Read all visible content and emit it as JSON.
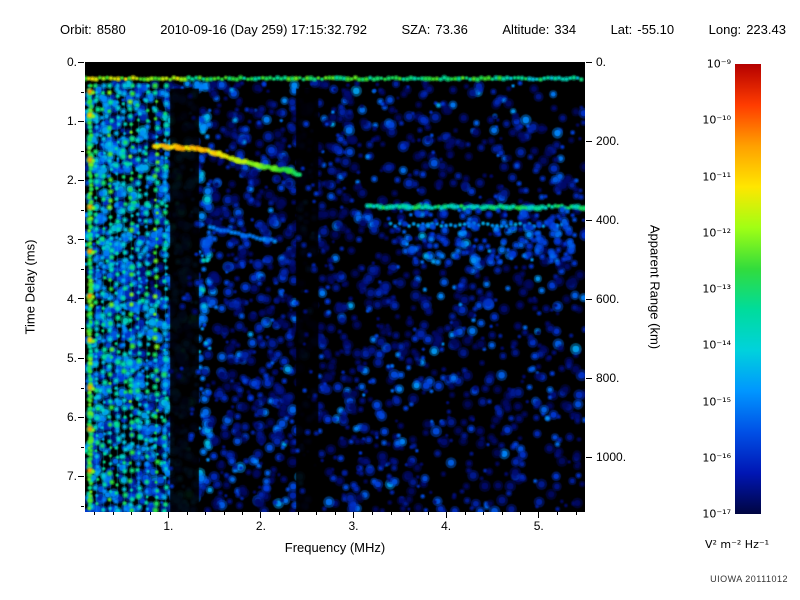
{
  "header": {
    "orbit": {
      "label": "Orbit:",
      "value": "8580"
    },
    "datetime": {
      "value": "2010-09-16 (Day 259) 17:15:32.792"
    },
    "sza": {
      "label": "SZA:",
      "value": "73.36"
    },
    "altitude": {
      "label": "Altitude:",
      "value": "334"
    },
    "lat": {
      "label": "Lat:",
      "value": "-55.10"
    },
    "long": {
      "label": "Long:",
      "value": "223.43"
    }
  },
  "chart_data": {
    "type": "heatmap",
    "xlabel": "Frequency (MHz)",
    "ylabel": "Time Delay (ms)",
    "y2label": "Apparent Range (km)",
    "x_range_mhz": [
      0.1,
      5.5
    ],
    "y_range_ms": [
      0,
      7.6
    ],
    "km_per_ms": 149.9,
    "x_tick_values": [
      1,
      2,
      3,
      4,
      5
    ],
    "x_tick_labels": [
      "1.",
      "2.",
      "3.",
      "4.",
      "5."
    ],
    "y_tick_values": [
      0,
      1,
      2,
      3,
      4,
      5,
      6,
      7
    ],
    "y_tick_labels": [
      "0.",
      "1.",
      "2.",
      "3.",
      "4.",
      "5.",
      "6.",
      "7."
    ],
    "y2_tick_values": [
      0,
      200,
      400,
      600,
      800,
      1000
    ],
    "y2_tick_labels": [
      "0.",
      "200.",
      "400.",
      "600.",
      "800.",
      "1000."
    ],
    "colorbar": {
      "scale": "log",
      "unit": "V² m⁻² Hz⁻¹",
      "tick_labels": [
        "10⁻⁹",
        "10⁻¹⁰",
        "10⁻¹¹",
        "10⁻¹²",
        "10⁻¹³",
        "10⁻¹⁴",
        "10⁻¹⁵",
        "10⁻¹⁶",
        "10⁻¹⁷"
      ],
      "gradient": [
        "#b40000",
        "#ff3c00",
        "#ffa000",
        "#ffe600",
        "#a0ff14",
        "#32dc3c",
        "#00dc9b",
        "#00d2dc",
        "#0096ff",
        "#0050e6",
        "#0016b4",
        "#000541"
      ]
    },
    "features": {
      "first_echo_line_ms": 0.28,
      "plasma_harmonic_lines_mhz": [
        0.155,
        0.225,
        0.3,
        0.375,
        0.45,
        0.525,
        0.6,
        0.68,
        0.77,
        0.87,
        0.97
      ],
      "bright_resonance_mhz": 0.155,
      "bright_spot_delays_ms": [
        0.5,
        0.9,
        1.65,
        2.45,
        3.2,
        3.95,
        4.7,
        5.5,
        6.2,
        6.9
      ],
      "ionosphere_trace_f_mhz_t_ms": [
        [
          0.85,
          1.42
        ],
        [
          1.1,
          1.44
        ],
        [
          1.35,
          1.47
        ],
        [
          1.55,
          1.55
        ],
        [
          1.75,
          1.66
        ],
        [
          1.95,
          1.74
        ],
        [
          2.15,
          1.8
        ],
        [
          2.3,
          1.84
        ],
        [
          2.42,
          1.9
        ]
      ],
      "second_echo_trace": [
        [
          1.45,
          2.8
        ],
        [
          1.8,
          2.92
        ],
        [
          2.15,
          3.02
        ]
      ],
      "oblique_echo_band": {
        "t_ms": 2.45,
        "f_mhz": [
          3.15,
          5.5
        ]
      },
      "oblique_echo_band2": {
        "t_ms": 2.75,
        "f_mhz": [
          3.4,
          5.3
        ]
      },
      "diffuse_patch": {
        "f_mhz": [
          3.5,
          5.4
        ],
        "t_ms": [
          2.5,
          3.4
        ]
      },
      "blank_bands_mhz": [
        [
          1.02,
          1.33
        ],
        [
          2.38,
          2.62
        ]
      ]
    }
  },
  "credit": "UIOWA 20111012"
}
